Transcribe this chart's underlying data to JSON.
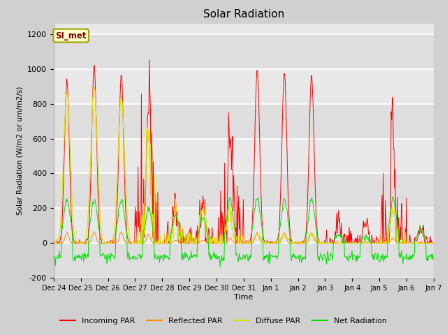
{
  "title": "Solar Radiation",
  "ylabel": "Solar Radiation (W/m2 or um/m2/s)",
  "xlabel": "Time",
  "ylim": [
    -200,
    1260
  ],
  "yticks": [
    -200,
    0,
    200,
    400,
    600,
    800,
    1000,
    1200
  ],
  "plot_bg_color": "#e8e8e8",
  "fig_bg_color": "#d8d8d8",
  "legend_label": "SI_met",
  "legend_entries": [
    "Incoming PAR",
    "Reflected PAR",
    "Diffuse PAR",
    "Net Radiation"
  ],
  "line_colors": [
    "#ff0000",
    "#ff8c00",
    "#e0e000",
    "#00dd00"
  ],
  "xtick_positions": [
    0,
    1,
    2,
    3,
    4,
    5,
    6,
    7,
    8,
    9,
    10,
    11,
    12,
    13,
    14
  ],
  "xtick_labels": [
    "Dec 24",
    "Dec 25",
    "Dec 26",
    "Dec 27",
    "Dec 28",
    "Dec 29",
    "Dec 30",
    "Dec 31",
    "Jan 1",
    "Jan 2",
    "Jan 3",
    "Jan 4",
    "Jan 5",
    "Jan 6",
    "Jan 7"
  ]
}
